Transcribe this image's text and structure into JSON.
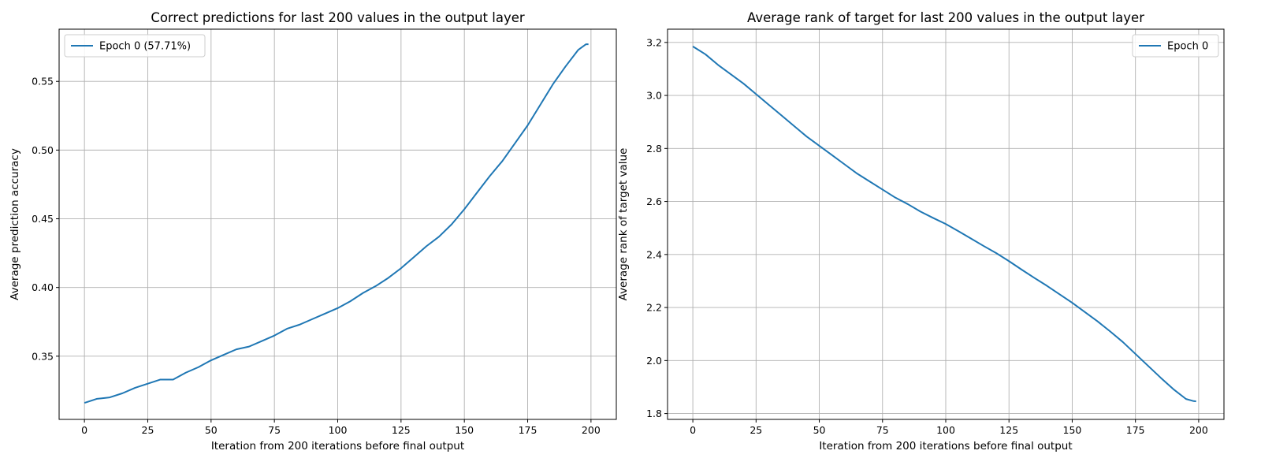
{
  "chart_data": [
    {
      "type": "line",
      "title": "Correct predictions for last 200 values in the output layer",
      "xlabel": "Iteration from 200 iterations before final output",
      "ylabel": "Average prediction accuracy",
      "xlim": [
        -10,
        210
      ],
      "ylim": [
        0.304,
        0.588
      ],
      "xticks": [
        0,
        25,
        50,
        75,
        100,
        125,
        150,
        175,
        200
      ],
      "xtick_labels": [
        "0",
        "25",
        "50",
        "75",
        "100",
        "125",
        "150",
        "175",
        "200"
      ],
      "yticks": [
        0.35,
        0.4,
        0.45,
        0.5,
        0.55
      ],
      "ytick_labels": [
        "0.35",
        "0.40",
        "0.45",
        "0.50",
        "0.55"
      ],
      "grid": true,
      "legend": "top-left",
      "color": "#1f77b4",
      "series": [
        {
          "name": "Epoch 0 (57.71%)",
          "x": [
            0,
            5,
            10,
            15,
            20,
            25,
            30,
            35,
            40,
            45,
            50,
            55,
            60,
            65,
            70,
            75,
            80,
            85,
            90,
            95,
            100,
            105,
            110,
            115,
            120,
            125,
            130,
            135,
            140,
            145,
            150,
            155,
            160,
            165,
            170,
            175,
            180,
            185,
            190,
            195,
            198,
            199
          ],
          "values": [
            0.316,
            0.319,
            0.32,
            0.323,
            0.327,
            0.33,
            0.333,
            0.333,
            0.338,
            0.342,
            0.347,
            0.351,
            0.355,
            0.357,
            0.361,
            0.365,
            0.37,
            0.373,
            0.377,
            0.381,
            0.385,
            0.39,
            0.396,
            0.401,
            0.407,
            0.414,
            0.422,
            0.43,
            0.437,
            0.446,
            0.457,
            0.469,
            0.481,
            0.492,
            0.505,
            0.518,
            0.533,
            0.548,
            0.561,
            0.573,
            0.577,
            0.577
          ]
        }
      ]
    },
    {
      "type": "line",
      "title": "Average rank of target for last 200 values in the output layer",
      "xlabel": "Iteration from 200 iterations before final output",
      "ylabel": "Average rank of target value",
      "xlim": [
        -10,
        210
      ],
      "ylim": [
        1.778,
        3.25
      ],
      "xticks": [
        0,
        25,
        50,
        75,
        100,
        125,
        150,
        175,
        200
      ],
      "xtick_labels": [
        "0",
        "25",
        "50",
        "75",
        "100",
        "125",
        "150",
        "175",
        "200"
      ],
      "yticks": [
        1.8,
        2.0,
        2.2,
        2.4,
        2.6,
        2.8,
        3.0,
        3.2
      ],
      "ytick_labels": [
        "1.8",
        "2.0",
        "2.2",
        "2.4",
        "2.6",
        "2.8",
        "3.0",
        "3.2"
      ],
      "grid": true,
      "legend": "top-right",
      "color": "#1f77b4",
      "series": [
        {
          "name": "Epoch 0",
          "x": [
            0,
            5,
            10,
            15,
            20,
            25,
            30,
            35,
            40,
            45,
            50,
            55,
            60,
            65,
            70,
            75,
            80,
            85,
            90,
            95,
            100,
            105,
            110,
            115,
            120,
            125,
            130,
            135,
            140,
            145,
            150,
            155,
            160,
            165,
            170,
            175,
            180,
            185,
            190,
            195,
            198,
            199
          ],
          "values": [
            3.185,
            3.155,
            3.115,
            3.08,
            3.045,
            3.005,
            2.965,
            2.925,
            2.885,
            2.845,
            2.81,
            2.775,
            2.74,
            2.705,
            2.675,
            2.645,
            2.615,
            2.59,
            2.562,
            2.538,
            2.515,
            2.488,
            2.46,
            2.432,
            2.405,
            2.375,
            2.343,
            2.312,
            2.282,
            2.25,
            2.218,
            2.183,
            2.148,
            2.11,
            2.07,
            2.025,
            1.98,
            1.935,
            1.892,
            1.855,
            1.847,
            1.846
          ]
        }
      ]
    }
  ]
}
